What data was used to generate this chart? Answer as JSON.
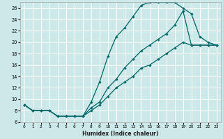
{
  "xlabel": "Humidex (Indice chaleur)",
  "bg_color": "#cce8e8",
  "grid_color": "#ffffff",
  "line_color": "#006666",
  "xlim": [
    -0.5,
    23.5
  ],
  "ylim": [
    6,
    27
  ],
  "yticks": [
    6,
    8,
    10,
    12,
    14,
    16,
    18,
    20,
    22,
    24,
    26
  ],
  "xticks": [
    0,
    1,
    2,
    3,
    4,
    5,
    6,
    7,
    8,
    9,
    10,
    11,
    12,
    13,
    14,
    15,
    16,
    17,
    18,
    19,
    20,
    21,
    22,
    23
  ],
  "line1_x": [
    0,
    1,
    2,
    3,
    4,
    5,
    6,
    7,
    8,
    9,
    10,
    11,
    12,
    13,
    14,
    15,
    16,
    17,
    18,
    19,
    20,
    21,
    22,
    23
  ],
  "line1_y": [
    9,
    8,
    8,
    8,
    7,
    7,
    7,
    7,
    9.5,
    13,
    17.5,
    21,
    22.5,
    24.5,
    26.5,
    27,
    27,
    27,
    27,
    26,
    25,
    21,
    20,
    19.5
  ],
  "line2_x": [
    0,
    1,
    2,
    3,
    4,
    5,
    6,
    7,
    8,
    9,
    10,
    11,
    12,
    13,
    14,
    15,
    16,
    17,
    18,
    19,
    20,
    21,
    22,
    23
  ],
  "line2_y": [
    9,
    8,
    8,
    8,
    7,
    7,
    7,
    7,
    8.5,
    9.5,
    12,
    13.5,
    15.5,
    17,
    18.5,
    19.5,
    20.5,
    21.5,
    23,
    25.5,
    19.5,
    19.5,
    19.5,
    19.5
  ],
  "line3_x": [
    0,
    1,
    2,
    3,
    4,
    5,
    6,
    7,
    8,
    9,
    10,
    11,
    12,
    13,
    14,
    15,
    16,
    17,
    18,
    19,
    20,
    21,
    22,
    23
  ],
  "line3_y": [
    9,
    8,
    8,
    8,
    7,
    7,
    7,
    7,
    8,
    9,
    10.5,
    12,
    13,
    14,
    15.5,
    16,
    17,
    18,
    19,
    20,
    19.5,
    19.5,
    19.5,
    19.5
  ]
}
